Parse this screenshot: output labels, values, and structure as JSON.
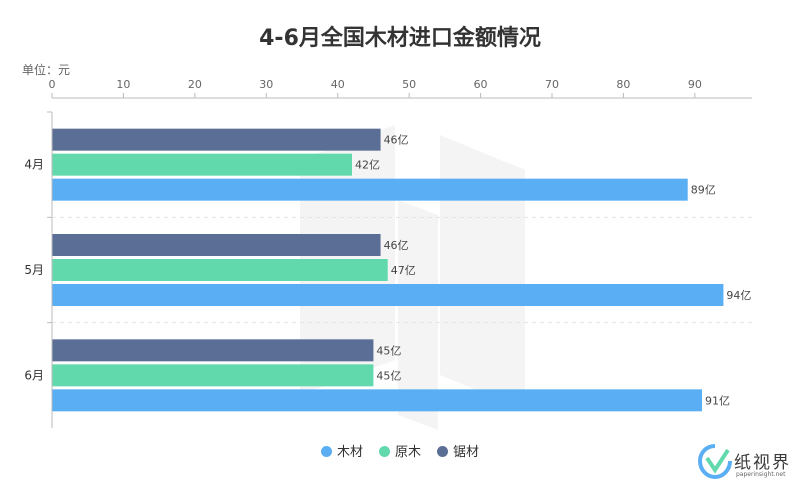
{
  "title": "4-6月全国木材进口金额情况",
  "unit_label": "单位：元",
  "colors": {
    "木材": "#5aaef3",
    "原木": "#62d9ad",
    "锯材": "#5b6e96"
  },
  "chart_data": {
    "type": "bar",
    "orientation": "horizontal",
    "categories": [
      "4月",
      "5月",
      "6月"
    ],
    "series": [
      {
        "name": "锯材",
        "values": [
          46,
          46,
          45
        ],
        "labels": [
          "46亿",
          "46亿",
          "45亿"
        ]
      },
      {
        "name": "原木",
        "values": [
          42,
          47,
          45
        ],
        "labels": [
          "42亿",
          "47亿",
          "45亿"
        ]
      },
      {
        "name": "木材",
        "values": [
          89,
          94,
          91
        ],
        "labels": [
          "89亿",
          "94亿",
          "91亿"
        ]
      }
    ],
    "xlim": [
      0,
      98
    ],
    "xticks": [
      0,
      10,
      20,
      30,
      40,
      50,
      60,
      70,
      80,
      90
    ],
    "legend": [
      "木材",
      "原木",
      "锯材"
    ],
    "legend_position": "bottom",
    "grid": false
  },
  "logo": {
    "name": "纸视界",
    "url_text": "paperinsight.net"
  }
}
